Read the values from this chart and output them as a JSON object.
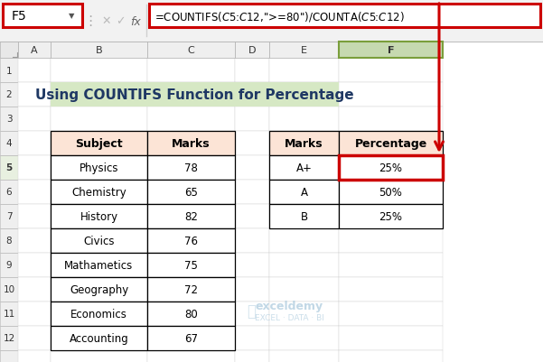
{
  "title": "Using COUNTIFS Function for Percentage",
  "title_bg": "#d6e8c4",
  "title_color": "#1f3864",
  "formula_text": "=COUNTIFS($C$5:$C$12,\">= 80\")/COUNTA($C$5:$C$12)",
  "cell_ref": "F5",
  "subjects": [
    "Physics",
    "Chemistry",
    "History",
    "Civics",
    "Mathametics",
    "Geography",
    "Economics",
    "Accounting"
  ],
  "marks": [
    78,
    65,
    82,
    76,
    75,
    72,
    80,
    67
  ],
  "grade_labels": [
    "A+",
    "A",
    "B"
  ],
  "percentages": [
    "25%",
    "50%",
    "25%"
  ],
  "bg_color": "#ffffff",
  "header_fill": "#fce4d6",
  "col_letters": [
    "A",
    "B",
    "C",
    "D",
    "E",
    "F"
  ],
  "watermark_color": "#a8c8dc",
  "arrow_color": "#cc0000",
  "toolbar_bg": "#f2f2f2",
  "formula_bar_border": "#cc0000",
  "cell_ref_border": "#cc0000",
  "col_header_normal": "#efefef",
  "col_header_selected": "#c6d9b0",
  "row_header_bg": "#efefef",
  "grid_color": "#d0d0d0",
  "row_header_selected": "#e8f0e0"
}
